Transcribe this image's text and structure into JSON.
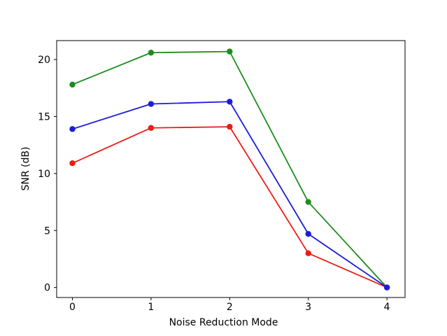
{
  "chart_data": {
    "type": "line",
    "title": "",
    "xlabel": "Noise Reduction Mode",
    "ylabel": "SNR (dB)",
    "x": [
      0,
      1,
      2,
      3,
      4
    ],
    "series": [
      {
        "name": "red",
        "color": "#ed1c16",
        "values": [
          10.9,
          14.0,
          14.1,
          3.0,
          0.0
        ]
      },
      {
        "name": "green",
        "color": "#1e8c1e",
        "values": [
          17.8,
          20.6,
          20.7,
          7.5,
          0.0
        ]
      },
      {
        "name": "blue",
        "color": "#1d1dd8",
        "values": [
          13.9,
          16.1,
          16.3,
          4.7,
          0.0
        ]
      }
    ],
    "xticks": [
      0,
      1,
      2,
      3,
      4
    ],
    "yticks": [
      0,
      5,
      10,
      15,
      20
    ],
    "xlim": [
      -0.2,
      4.23
    ],
    "ylim": [
      -0.88,
      21.66
    ],
    "grid": false,
    "legend": "none",
    "marker": "circle",
    "background_color": "#ffffff",
    "axes_color": "#000000"
  }
}
